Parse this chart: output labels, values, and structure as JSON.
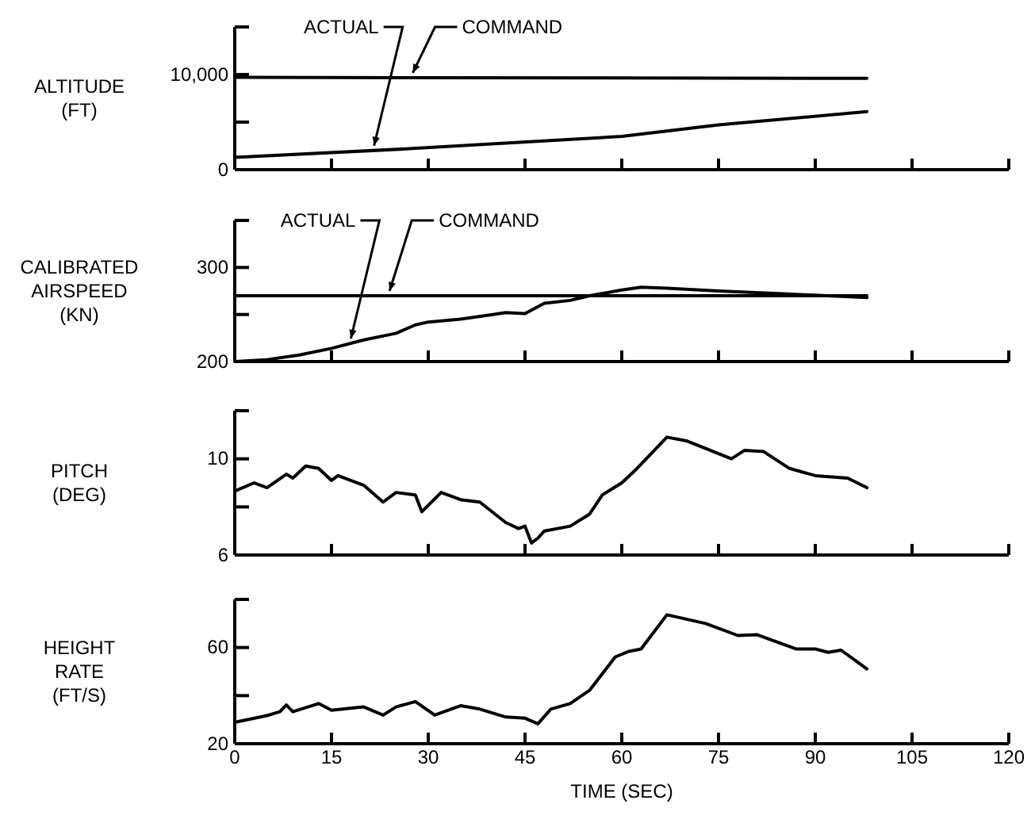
{
  "chart_data": [
    {
      "type": "line",
      "ylabel": "ALTITUDE (FT)",
      "xlim": [
        0,
        120
      ],
      "xticks": [
        0,
        15,
        30,
        45,
        60,
        75,
        90,
        105,
        120
      ],
      "ylim": [
        0,
        15000
      ],
      "yticks": [
        0,
        {
          "value": 5000,
          "label": null
        },
        {
          "value": 10000,
          "label": "10,000"
        },
        {
          "value": 15000,
          "label": null
        }
      ],
      "tick_labels": "y",
      "x": [
        0,
        98
      ],
      "series": [
        {
          "name": "COMMAND",
          "color": "#000000",
          "values": [
            9700,
            9600
          ]
        },
        {
          "name": "ACTUAL",
          "color": "#000000",
          "x": [
            0,
            27,
            50,
            60,
            75,
            98
          ],
          "values": [
            1300,
            2200,
            3100,
            3500,
            4700,
            6100
          ]
        }
      ]
    },
    {
      "type": "line",
      "ylabel": "CALIBRATED AIRSPEED (KN)",
      "xlim": [
        0,
        120
      ],
      "xticks": [
        0,
        15,
        30,
        45,
        60,
        75,
        90,
        105,
        120
      ],
      "ylim": [
        200,
        350
      ],
      "yticks": [
        200,
        {
          "value": 250,
          "label": null
        },
        300,
        {
          "value": 350,
          "label": null
        }
      ],
      "tick_labels": "y",
      "x": [
        0,
        98
      ],
      "series": [
        {
          "name": "COMMAND",
          "color": "#000000",
          "values": [
            270,
            270
          ]
        },
        {
          "name": "ACTUAL",
          "color": "#000000",
          "x": [
            0,
            5,
            10,
            15,
            20,
            25,
            28,
            30,
            35,
            40,
            42,
            45,
            48,
            52,
            55,
            60,
            63,
            67,
            75,
            85,
            98
          ],
          "values": [
            200,
            202,
            207,
            214,
            223,
            230,
            239,
            242,
            245,
            250,
            252,
            251,
            262,
            265,
            270,
            276,
            279,
            278,
            275,
            272,
            268
          ]
        }
      ]
    },
    {
      "type": "line",
      "ylabel": "PITCH (DEG)",
      "xlim": [
        0,
        120
      ],
      "xticks": [
        0,
        15,
        30,
        45,
        60,
        75,
        90,
        105,
        120
      ],
      "ylim": [
        6,
        12
      ],
      "yticks": [
        6,
        {
          "value": 8,
          "label": null
        },
        10,
        {
          "value": 12,
          "label": null
        }
      ],
      "tick_labels": "y",
      "x": [
        0,
        3,
        5,
        8,
        9,
        11,
        13,
        15,
        16,
        20,
        23,
        25,
        28,
        29,
        32,
        35,
        38,
        42,
        44,
        45,
        46,
        47,
        48,
        52,
        55,
        57,
        60,
        62,
        67,
        70,
        77,
        79,
        82,
        86,
        90,
        95,
        98
      ],
      "series": [
        {
          "color": "#000000",
          "values": [
            8.66,
            9.0,
            8.8,
            9.36,
            9.2,
            9.7,
            9.6,
            9.1,
            9.3,
            8.9,
            8.2,
            8.6,
            8.5,
            7.8,
            8.6,
            8.3,
            8.2,
            7.35,
            7.1,
            7.2,
            6.5,
            6.7,
            7.0,
            7.2,
            7.7,
            8.5,
            9.0,
            9.5,
            10.9,
            10.75,
            10.0,
            10.35,
            10.3,
            9.6,
            9.3,
            9.2,
            8.8
          ]
        }
      ]
    },
    {
      "type": "line",
      "ylabel": "HEIGHT RATE (FT/S)",
      "xlabel": "TIME (SEC)",
      "xlim": [
        0,
        120
      ],
      "xticks": [
        0,
        15,
        30,
        45,
        60,
        75,
        90,
        105,
        120
      ],
      "ylim": [
        20,
        80
      ],
      "yticks": [
        20,
        {
          "value": 40,
          "label": null
        },
        60,
        {
          "value": 80,
          "label": null
        }
      ],
      "x": [
        0,
        5,
        7,
        8,
        9,
        13,
        15,
        20,
        23,
        25,
        28,
        31,
        35,
        38,
        42,
        45,
        47,
        49,
        52,
        55,
        59,
        61,
        63,
        67,
        73,
        78,
        81,
        87,
        90,
        92,
        94,
        98
      ],
      "series": [
        {
          "color": "#000000",
          "values": [
            28.9,
            31.7,
            33.3,
            36.1,
            33.3,
            36.7,
            33.9,
            35.3,
            31.9,
            35.3,
            37.5,
            31.9,
            35.8,
            34.4,
            31.1,
            30.6,
            28.3,
            34.4,
            36.7,
            42.2,
            56.1,
            58.3,
            59.4,
            73.6,
            70,
            65,
            65.3,
            59.4,
            59.4,
            58,
            58.9,
            51.1
          ]
        }
      ]
    }
  ]
}
